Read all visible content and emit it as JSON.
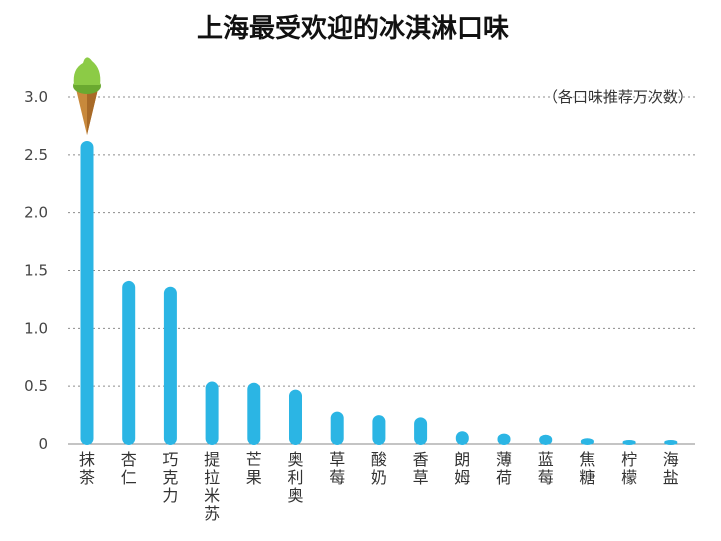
{
  "chart_data": {
    "type": "bar",
    "title": "上海最受欢迎的冰淇淋口味",
    "unit_note": "（各口味推荐万次数）",
    "categories": [
      "抹茶",
      "杏仁",
      "巧克力",
      "提拉米苏",
      "芒果",
      "奥利奥",
      "草莓",
      "酸奶",
      "香草",
      "朗姆",
      "薄荷",
      "蓝莓",
      "焦糖",
      "柠檬",
      "海盐"
    ],
    "values": [
      2.62,
      1.41,
      1.36,
      0.54,
      0.53,
      0.47,
      0.28,
      0.25,
      0.23,
      0.11,
      0.09,
      0.08,
      0.05,
      0.02,
      0.02
    ],
    "ylim": [
      0,
      3.0
    ],
    "yticks": [
      "0",
      "0.5",
      "1.0",
      "1.5",
      "2.0",
      "2.5",
      "3.0"
    ],
    "ytick_values": [
      0,
      0.5,
      1.0,
      1.5,
      2.0,
      2.5,
      3.0
    ],
    "grid": true,
    "bar_color": "#2bb5e4",
    "top_bar_icon": "ice-cream-cone-icon",
    "icon_colors": {
      "cone": "#c8893c",
      "cone_shadow": "#a86a28",
      "scoop": "#8ccb46",
      "scoop_shadow": "#6aa930"
    }
  }
}
